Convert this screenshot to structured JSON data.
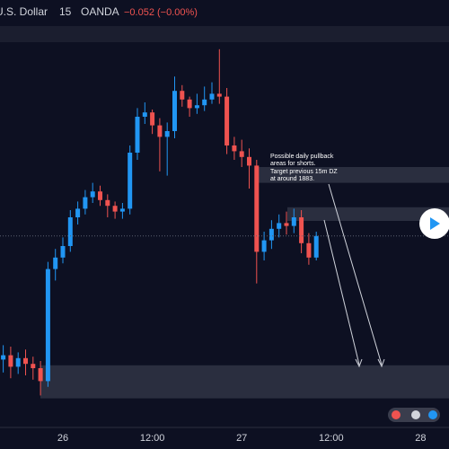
{
  "chart_data": {
    "type": "candlestick",
    "symbol": "U.S. Dollar",
    "interval": "15",
    "source": "OANDA",
    "change": "−0.052 (−0.00%)",
    "annotation": [
      "Possible daily pullback",
      "areas for shorts.",
      "Target previous 15m DZ",
      "at around 1883."
    ],
    "categories": [
      null,
      null,
      null,
      null,
      null,
      null,
      null,
      null,
      "26",
      null,
      null,
      null,
      null,
      null,
      null,
      null,
      null,
      null,
      null,
      null,
      "12:00",
      null,
      null,
      null,
      null,
      null,
      null,
      null,
      null,
      null,
      null,
      null,
      "27",
      null,
      null,
      null,
      null,
      null,
      null,
      null,
      null,
      null,
      null,
      null,
      "12:00",
      null,
      null,
      null,
      null,
      null,
      null,
      null,
      null,
      null,
      null,
      null,
      "28",
      null,
      null,
      null
    ],
    "open": [
      1884.1,
      1884.4,
      1883.6,
      1884.2,
      1883.8,
      1883.5,
      1882.6,
      1890.4,
      1891.2,
      1892.0,
      1894.0,
      1894.6,
      1895.4,
      1895.8,
      1895.2,
      1894.8,
      1894.4,
      1894.6,
      1898.5,
      1901.0,
      1901.3,
      1900.4,
      1899.6,
      1900.0,
      1902.8,
      1902.2,
      1901.6,
      1901.8,
      1902.2,
      1902.6,
      1902.4,
      1899.0,
      1898.6,
      1898.2,
      1897.6,
      1891.6,
      1892.4,
      1893.2,
      1893.6,
      1893.4,
      1894.0,
      1892.2,
      1891.2,
      null,
      null,
      null,
      null,
      null,
      null,
      null,
      null,
      null,
      null,
      null,
      null,
      null,
      null,
      null,
      null,
      null
    ],
    "high": [
      1885.1,
      1885.0,
      1884.6,
      1884.8,
      1884.3,
      1884.0,
      1890.9,
      1891.8,
      1892.6,
      1894.5,
      1895.1,
      1895.9,
      1896.4,
      1896.2,
      1895.6,
      1895.1,
      1895.0,
      1899.0,
      1901.6,
      1902.0,
      1901.5,
      1900.9,
      1900.6,
      1903.8,
      1903.2,
      1902.4,
      1902.6,
      1903.1,
      1903.4,
      1905.7,
      1903.0,
      1899.6,
      1899.4,
      1898.8,
      1898.0,
      1893.0,
      1893.8,
      1894.2,
      1894.4,
      1894.6,
      1894.5,
      1892.9,
      1893.0,
      null,
      null,
      null,
      null,
      null,
      null,
      null,
      null,
      null,
      null,
      null,
      null,
      null,
      null,
      null,
      null,
      null
    ],
    "low": [
      1883.2,
      1882.8,
      1883.1,
      1883.0,
      1882.7,
      1881.6,
      1882.2,
      1889.6,
      1890.8,
      1891.6,
      1893.5,
      1894.2,
      1895.0,
      1894.8,
      1894.0,
      1893.9,
      1893.9,
      1894.2,
      1898.0,
      1900.5,
      1899.8,
      1897.2,
      1896.9,
      1899.5,
      1901.7,
      1901.0,
      1901.2,
      1901.4,
      1901.9,
      1901.9,
      1898.4,
      1898.0,
      1897.5,
      1896.0,
      1889.4,
      1891.0,
      1891.8,
      1892.6,
      1892.8,
      1892.9,
      1891.5,
      1890.7,
      1891.0,
      null,
      null,
      null,
      null,
      null,
      null,
      null,
      null,
      null,
      null,
      null,
      null,
      null,
      null,
      null,
      null,
      null
    ],
    "close": [
      1884.4,
      1883.6,
      1884.2,
      1883.8,
      1883.5,
      1882.6,
      1890.4,
      1891.2,
      1892.0,
      1894.0,
      1894.6,
      1895.4,
      1895.8,
      1895.2,
      1894.8,
      1894.4,
      1894.6,
      1898.5,
      1901.0,
      1901.3,
      1900.4,
      1899.6,
      1900.0,
      1902.8,
      1902.2,
      1901.6,
      1901.8,
      1902.2,
      1902.6,
      1902.4,
      1899.0,
      1898.6,
      1898.2,
      1897.6,
      1891.6,
      1892.4,
      1893.2,
      1893.6,
      1893.4,
      1894.0,
      1892.2,
      1891.2,
      1892.7,
      null,
      null,
      null,
      null,
      null,
      null,
      null,
      null,
      null,
      null,
      null,
      null,
      null,
      null,
      null,
      null,
      null
    ],
    "zones": [
      [
        1897.5,
        1896.4
      ],
      [
        1894.7,
        1893.75
      ],
      [
        1883.7,
        1881.4
      ]
    ],
    "ylim": [
      1879.0,
      1906.0
    ],
    "up_color": "#2196f3",
    "down_color": "#ef5350",
    "zone_color": "#2a2e3f"
  }
}
